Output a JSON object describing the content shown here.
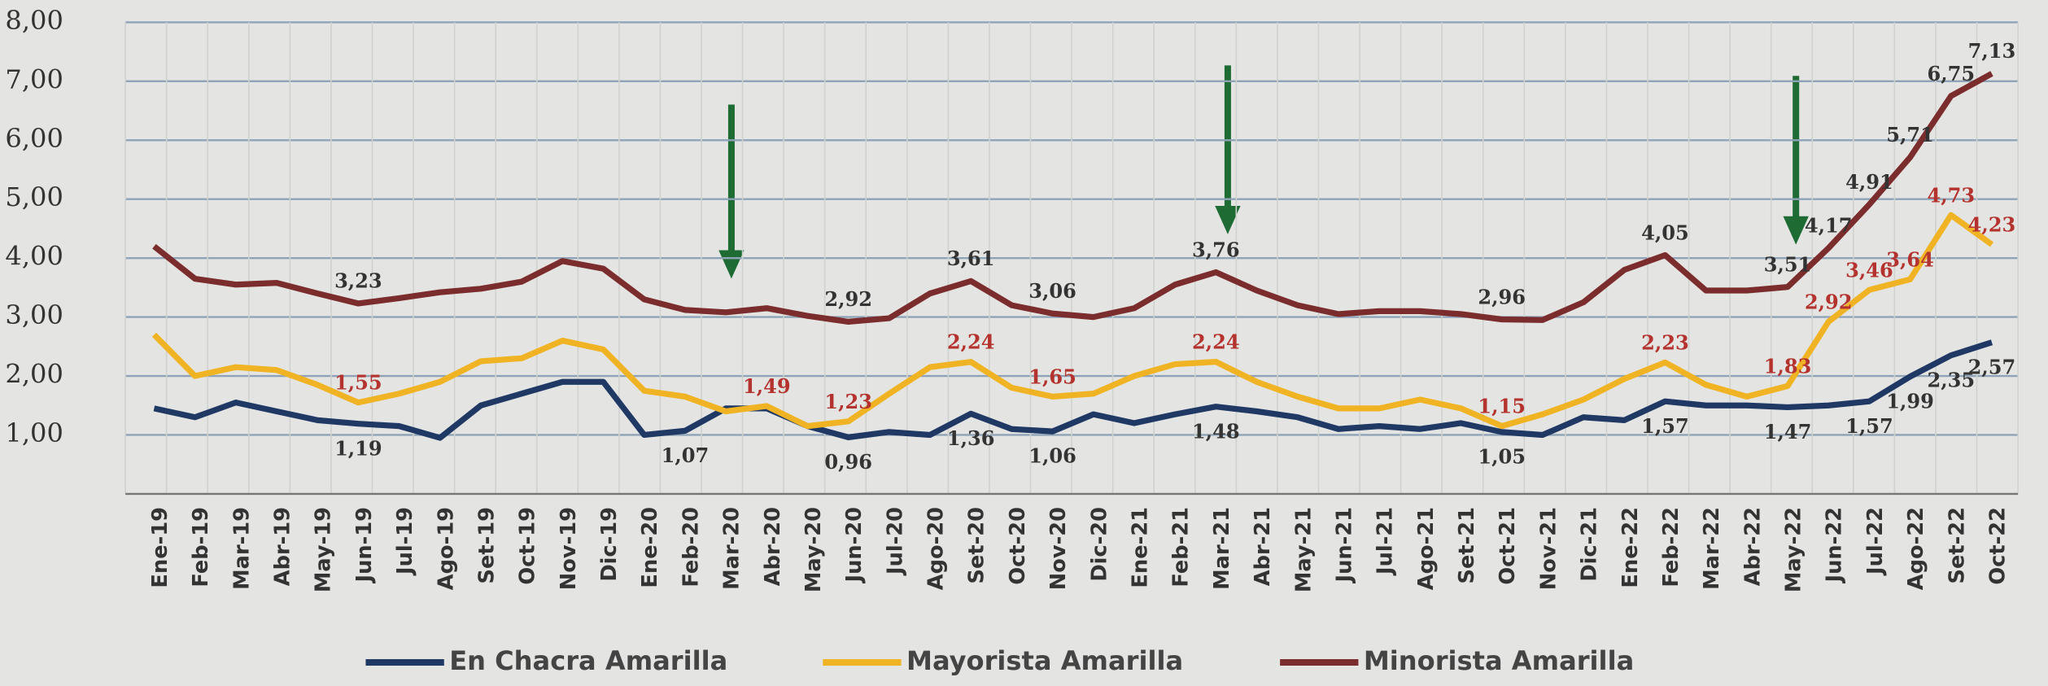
{
  "chart_data": {
    "type": "line",
    "categories": [
      "Ene-19",
      "Feb-19",
      "Mar-19",
      "Abr-19",
      "May-19",
      "Jun-19",
      "Jul-19",
      "Ago-19",
      "Set-19",
      "Oct-19",
      "Nov-19",
      "Dic-19",
      "Ene-20",
      "Feb-20",
      "Mar-20",
      "Abr-20",
      "May-20",
      "Jun-20",
      "Jul-20",
      "Ago-20",
      "Set-20",
      "Oct-20",
      "Nov-20",
      "Dic-20",
      "Ene-21",
      "Feb-21",
      "Mar-21",
      "Abr-21",
      "May-21",
      "Jun-21",
      "Jul-21",
      "Ago-21",
      "Set-21",
      "Oct-21",
      "Nov-21",
      "Dic-21",
      "Ene-22",
      "Feb-22",
      "Mar-22",
      "Abr-22",
      "May-22",
      "Jun-22",
      "Jul-22",
      "Ago-22",
      "Set-22",
      "Oct-22"
    ],
    "series": [
      {
        "name": "En Chacra Amarilla",
        "color": "#1f3864",
        "values": [
          1.45,
          1.3,
          1.55,
          1.4,
          1.25,
          1.19,
          1.15,
          0.95,
          1.5,
          1.7,
          1.9,
          1.9,
          1.0,
          1.07,
          1.45,
          1.45,
          1.15,
          0.96,
          1.05,
          1.0,
          1.36,
          1.1,
          1.06,
          1.35,
          1.2,
          1.35,
          1.48,
          1.4,
          1.3,
          1.1,
          1.15,
          1.1,
          1.2,
          1.05,
          1.0,
          1.3,
          1.25,
          1.57,
          1.5,
          1.5,
          1.47,
          1.5,
          1.57,
          1.99,
          2.35,
          2.57
        ],
        "value_labels": [
          null,
          null,
          null,
          null,
          null,
          "1,19",
          null,
          null,
          null,
          null,
          null,
          null,
          null,
          "1,07",
          null,
          null,
          null,
          "0,96",
          null,
          null,
          "1,36",
          null,
          "1,06",
          null,
          null,
          null,
          "1,48",
          null,
          null,
          null,
          null,
          null,
          null,
          "1,05",
          null,
          null,
          null,
          "1,57",
          null,
          null,
          "1,47",
          null,
          "1,57",
          "1,99",
          "2,35",
          "2,57"
        ]
      },
      {
        "name": "Mayorista Amarilla",
        "color": "#f0b323",
        "values": [
          2.7,
          2.0,
          2.15,
          2.1,
          1.85,
          1.55,
          1.7,
          1.9,
          2.25,
          2.3,
          2.6,
          2.45,
          1.75,
          1.65,
          1.4,
          1.49,
          1.15,
          1.23,
          1.7,
          2.15,
          2.24,
          1.8,
          1.65,
          1.7,
          2.0,
          2.2,
          2.24,
          1.9,
          1.65,
          1.45,
          1.45,
          1.6,
          1.45,
          1.15,
          1.35,
          1.6,
          1.95,
          2.23,
          1.85,
          1.65,
          1.83,
          2.92,
          3.46,
          3.64,
          4.73,
          4.23
        ],
        "value_labels": [
          null,
          null,
          null,
          null,
          null,
          "1,55",
          null,
          null,
          null,
          null,
          null,
          null,
          null,
          null,
          null,
          "1,49",
          null,
          "1,23",
          null,
          null,
          "2,24",
          null,
          "1,65",
          null,
          null,
          null,
          "2,24",
          null,
          null,
          null,
          null,
          null,
          null,
          "1,15",
          null,
          null,
          null,
          "2,23",
          null,
          null,
          "1,83",
          "2,92",
          "3,46",
          "3,64",
          "4,73",
          "4,23"
        ]
      },
      {
        "name": "Minorista Amarilla",
        "color": "#7b2c2c",
        "values": [
          4.2,
          3.65,
          3.55,
          3.58,
          3.4,
          3.23,
          3.32,
          3.42,
          3.48,
          3.6,
          3.95,
          3.82,
          3.3,
          3.12,
          3.08,
          3.15,
          3.02,
          2.92,
          2.98,
          3.4,
          3.61,
          3.2,
          3.06,
          3.0,
          3.15,
          3.55,
          3.76,
          3.45,
          3.2,
          3.05,
          3.1,
          3.1,
          3.05,
          2.96,
          2.95,
          3.25,
          3.8,
          4.05,
          3.45,
          3.45,
          3.51,
          4.17,
          4.91,
          5.71,
          6.75,
          7.13
        ],
        "value_labels": [
          null,
          null,
          null,
          null,
          null,
          "3,23",
          null,
          null,
          null,
          null,
          null,
          null,
          null,
          null,
          null,
          null,
          null,
          "2,92",
          null,
          null,
          "3,61",
          null,
          "3,06",
          null,
          null,
          null,
          "3,76",
          null,
          null,
          null,
          null,
          null,
          null,
          "2,96",
          null,
          null,
          null,
          "4,05",
          null,
          null,
          "3,51",
          "4,17",
          "4,91",
          "5,71",
          "6,75",
          "7,13"
        ]
      }
    ],
    "ylim": [
      0,
      8
    ],
    "yticks": [
      {
        "value": 1,
        "label": "1,00"
      },
      {
        "value": 2,
        "label": "2,00"
      },
      {
        "value": 3,
        "label": "3,00"
      },
      {
        "value": 4,
        "label": "4,00"
      },
      {
        "value": 5,
        "label": "5,00"
      },
      {
        "value": 6,
        "label": "6,00"
      },
      {
        "value": 7,
        "label": "7,00"
      },
      {
        "value": 8,
        "label": "8,00"
      }
    ],
    "grid": true
  }
}
